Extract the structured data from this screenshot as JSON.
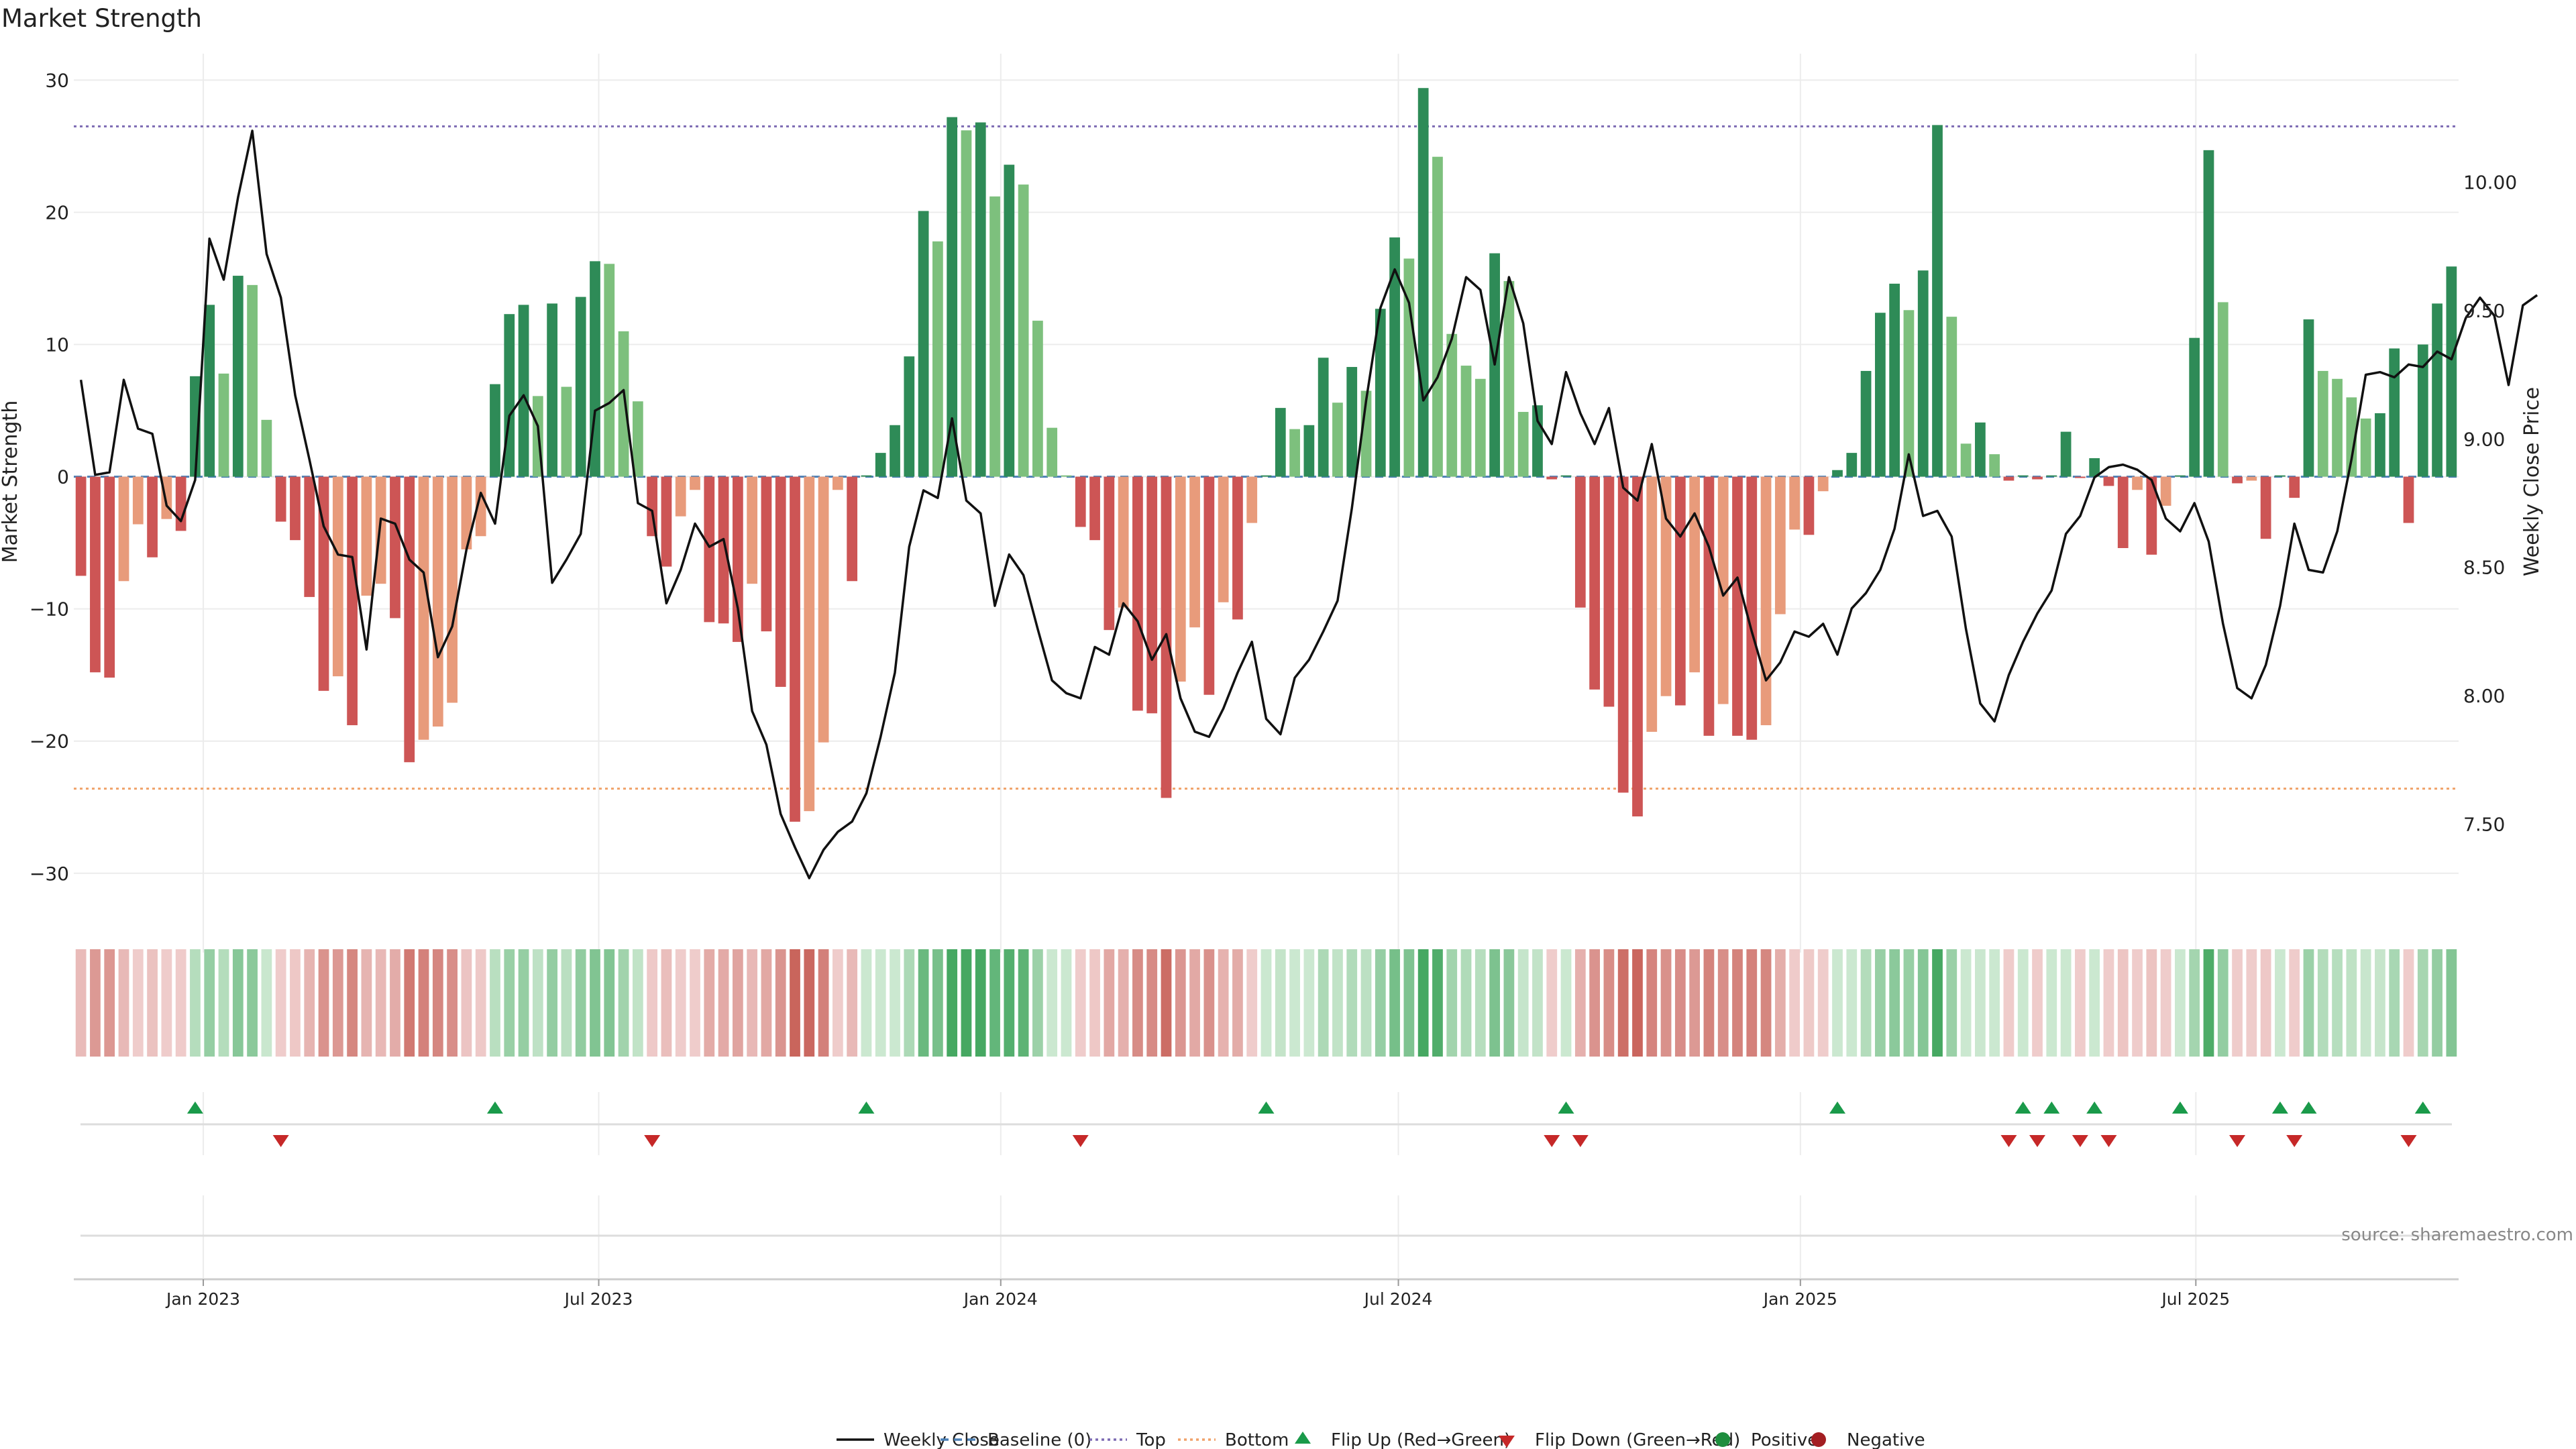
{
  "chart_data": {
    "type": "bar",
    "title": "Market Strength",
    "ylabel": "Market Strength",
    "ylabel_right": "Weekly Close Price",
    "ylim": [
      -36,
      32
    ],
    "ylim_right": [
      7.0,
      10.5
    ],
    "yticks": [
      30,
      20,
      10,
      0,
      -10,
      -20,
      -30
    ],
    "yticks_right": [
      10.0,
      9.5,
      9.0,
      8.5,
      8.0,
      7.5
    ],
    "x_start_date": "2022-11-06",
    "x_end_date": "2025-10-26",
    "x_ticks": [
      "Jan 2023",
      "Jul 2023",
      "Jan 2024",
      "Jul 2024",
      "Jan 2025",
      "Jul 2025"
    ],
    "levels": {
      "top": 26.5,
      "bottom": -23.6,
      "baseline": 0
    },
    "source": "source: sharemaestro.com",
    "strength": [
      -7.5,
      -14.8,
      -15.2,
      -7.9,
      -3.6,
      -6.1,
      -3.2,
      -4.1,
      7.6,
      13.0,
      7.8,
      15.2,
      14.5,
      4.3,
      -3.4,
      -4.8,
      -9.1,
      -16.2,
      -15.1,
      -18.8,
      -9.0,
      -8.1,
      -10.7,
      -21.6,
      -19.9,
      -18.9,
      -17.1,
      -5.5,
      -4.5,
      7.0,
      12.3,
      13.0,
      6.1,
      13.1,
      6.8,
      13.6,
      16.3,
      16.1,
      11.0,
      5.7,
      -4.5,
      -6.8,
      -3.0,
      -1.0,
      -11.0,
      -11.1,
      -12.5,
      -8.1,
      -11.7,
      -15.9,
      -26.1,
      -25.3,
      -20.1,
      -1.0,
      -7.9,
      0.1,
      1.8,
      3.9,
      9.1,
      20.1,
      17.8,
      27.2,
      26.2,
      26.8,
      21.2,
      23.6,
      22.1,
      11.8,
      3.7,
      0.1,
      -3.8,
      -4.8,
      -11.6,
      -9.9,
      -17.7,
      -17.9,
      -24.3,
      -15.5,
      -11.4,
      -16.5,
      -9.5,
      -10.8,
      -3.5,
      0.1,
      5.2,
      3.6,
      3.9,
      9.0,
      5.6,
      8.3,
      6.5,
      12.7,
      18.1,
      16.5,
      29.4,
      24.2,
      10.8,
      8.4,
      7.4,
      16.9,
      14.8,
      4.9,
      5.4,
      -0.2,
      0.1,
      -9.9,
      -16.1,
      -17.4,
      -23.9,
      -25.7,
      -19.3,
      -16.6,
      -17.3,
      -14.8,
      -19.6,
      -17.2,
      -19.6,
      -19.9,
      -18.8,
      -10.4,
      -4.0,
      -4.4,
      -1.1,
      0.5,
      1.8,
      8.0,
      12.4,
      14.6,
      12.6,
      15.6,
      26.6,
      12.1,
      2.5,
      4.1,
      1.7,
      -0.3,
      0.1,
      -0.2,
      0.1,
      3.4,
      -0.1,
      1.4,
      -0.7,
      -5.4,
      -1.0,
      -5.9,
      -2.2,
      0.1,
      10.5,
      24.7,
      13.2,
      -0.5,
      -0.3,
      -4.7,
      0.1,
      -1.6,
      11.9,
      8.0,
      7.4,
      6.0,
      4.4,
      4.8,
      9.7,
      -3.5,
      10.0,
      13.1,
      15.9
    ],
    "close": [
      9.23,
      8.86,
      8.87,
      9.23,
      9.04,
      9.02,
      8.74,
      8.68,
      8.84,
      9.78,
      9.62,
      9.94,
      10.2,
      9.72,
      9.55,
      9.17,
      8.92,
      8.66,
      8.55,
      8.54,
      8.18,
      8.69,
      8.67,
      8.53,
      8.48,
      8.15,
      8.27,
      8.57,
      8.79,
      8.67,
      9.09,
      9.17,
      9.05,
      8.44,
      8.53,
      8.63,
      9.11,
      9.14,
      9.19,
      8.75,
      8.72,
      8.36,
      8.49,
      8.67,
      8.58,
      8.61,
      8.34,
      7.94,
      7.81,
      7.54,
      7.41,
      7.29,
      7.4,
      7.47,
      7.51,
      7.62,
      7.84,
      8.09,
      8.58,
      8.8,
      8.77,
      9.08,
      8.76,
      8.71,
      8.35,
      8.55,
      8.47,
      8.26,
      8.06,
      8.01,
      7.99,
      8.19,
      8.16,
      8.36,
      8.29,
      8.14,
      8.24,
      7.99,
      7.86,
      7.84,
      7.95,
      8.09,
      8.21,
      7.91,
      7.85,
      8.07,
      8.14,
      8.25,
      8.37,
      8.73,
      9.15,
      9.51,
      9.66,
      9.53,
      9.15,
      9.24,
      9.39,
      9.63,
      9.58,
      9.29,
      9.63,
      9.45,
      9.07,
      8.98,
      9.26,
      9.1,
      8.98,
      9.12,
      8.81,
      8.76,
      8.98,
      8.69,
      8.62,
      8.71,
      8.58,
      8.39,
      8.46,
      8.25,
      8.06,
      8.13,
      8.25,
      8.23,
      8.28,
      8.16,
      8.34,
      8.4,
      8.49,
      8.65,
      8.94,
      8.7,
      8.72,
      8.62,
      8.26,
      7.97,
      7.9,
      8.08,
      8.21,
      8.32,
      8.41,
      8.63,
      8.7,
      8.85,
      8.89,
      8.9,
      8.88,
      8.84,
      8.69,
      8.64,
      8.75,
      8.6,
      8.28,
      8.03,
      7.99,
      8.12,
      8.35,
      8.67,
      8.49,
      8.48,
      8.64,
      8.92,
      9.25,
      9.26,
      9.24,
      9.29,
      9.28,
      9.34,
      9.31,
      9.47,
      9.55,
      9.48,
      9.21,
      9.52,
      9.56
    ]
  },
  "legend": [
    {
      "label": "Weekly Close",
      "kind": "line",
      "color": "#111111"
    },
    {
      "label": "Baseline (0)",
      "kind": "dashed",
      "color": "#4a7fb5"
    },
    {
      "label": "Top",
      "kind": "dotted",
      "color": "#7d6bb3"
    },
    {
      "label": "Bottom",
      "kind": "dotted",
      "color": "#f0a26a"
    },
    {
      "label": "Flip Up (Red→Green)",
      "kind": "triangle-up",
      "color": "#1a9a4a"
    },
    {
      "label": "Flip Down (Green→Red)",
      "kind": "triangle-down",
      "color": "#c62828"
    },
    {
      "label": "Positive",
      "kind": "circle",
      "color": "#1e8e3e"
    },
    {
      "label": "Negative",
      "kind": "circle",
      "color": "#a31e22"
    }
  ],
  "colors": {
    "pos_strong": "#2e8b57",
    "pos_weak": "#7dc07d",
    "neg_strong": "#cd5555",
    "neg_weak": "#e89b7b",
    "grid": "#ececec",
    "close_line": "#111111"
  }
}
